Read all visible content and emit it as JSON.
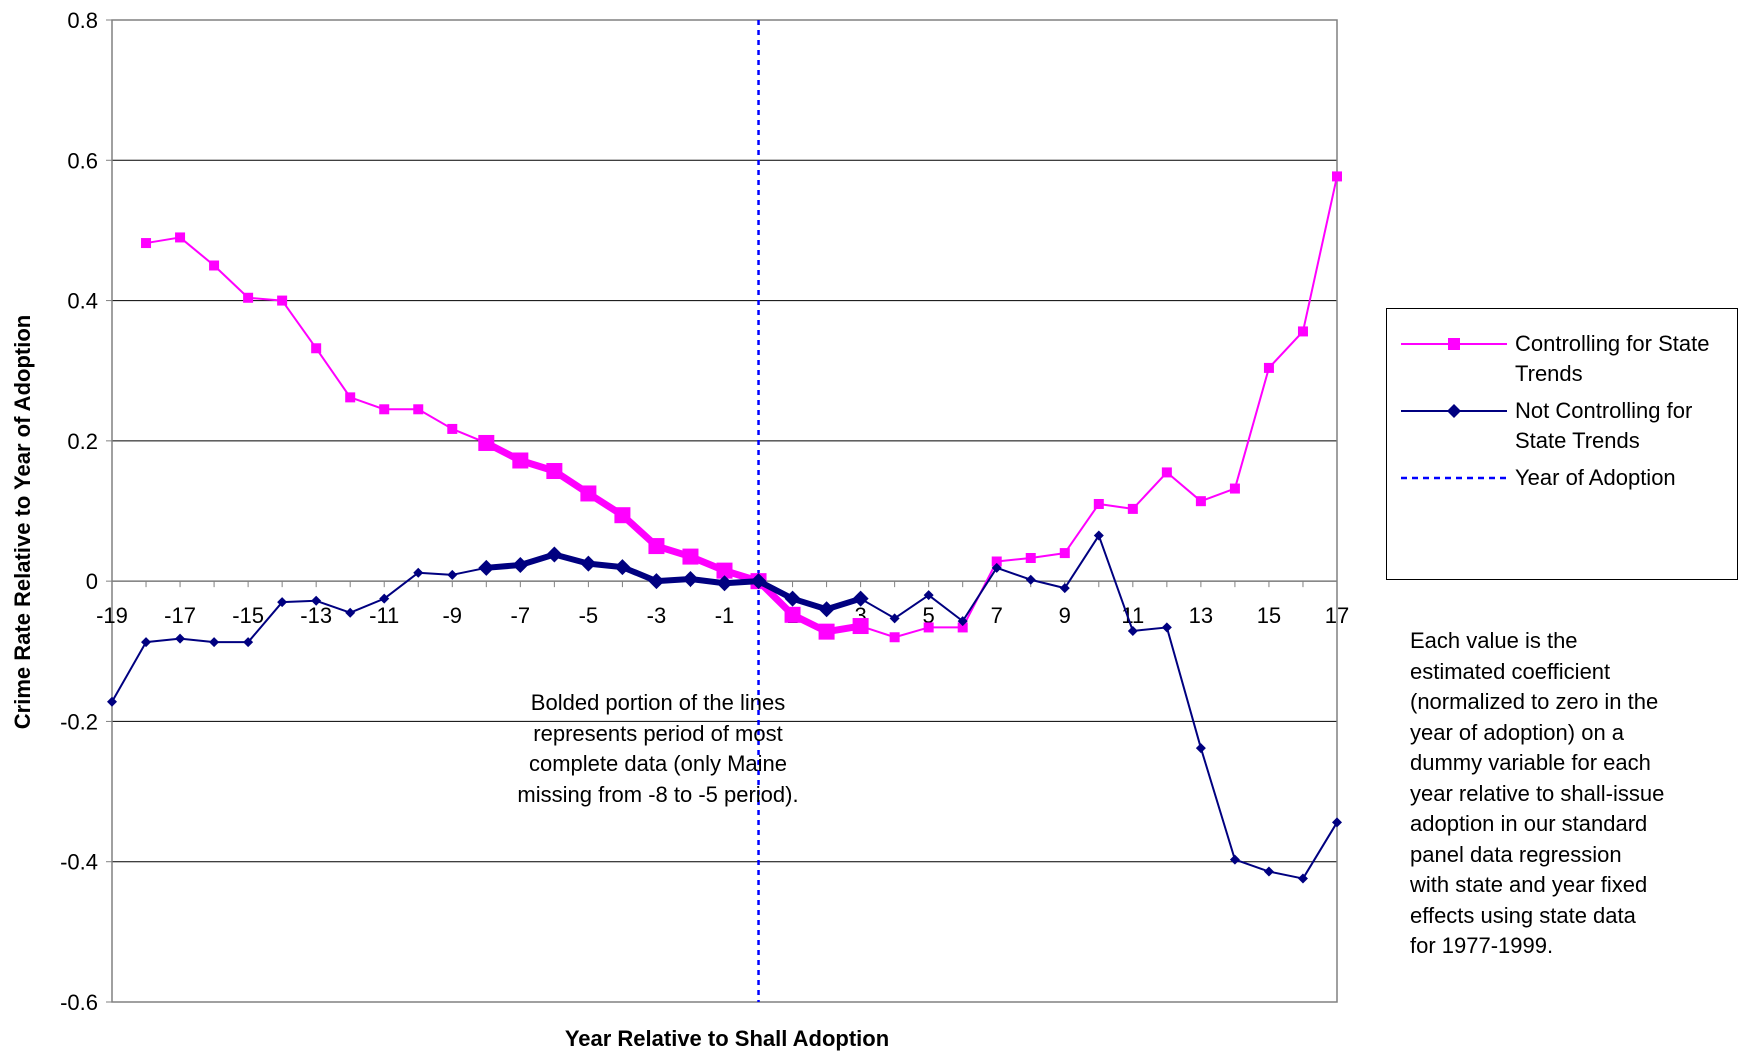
{
  "chart_data": {
    "type": "line",
    "title": "",
    "xlabel": "Year Relative to Shall Adoption",
    "ylabel": "Crime Rate Relative to Year of Adoption",
    "xlim": [
      -19,
      17
    ],
    "ylim": [
      -0.6,
      0.8
    ],
    "grid": "horizontal",
    "legend_position": "right",
    "x_tick_labels": [
      "-19",
      "-17",
      "-15",
      "-13",
      "-11",
      "-9",
      "-7",
      "-5",
      "-3",
      "-1",
      "1",
      "3",
      "5",
      "7",
      "9",
      "11",
      "13",
      "15",
      "17"
    ],
    "y_tick_labels": [
      "0.8",
      "0.6",
      "0.4",
      "0.2",
      "0",
      "-0.2",
      "-0.4",
      "-0.6"
    ],
    "x": [
      -19,
      -18,
      -17,
      -16,
      -15,
      -14,
      -13,
      -12,
      -11,
      -10,
      -9,
      -8,
      -7,
      -6,
      -5,
      -4,
      -3,
      -2,
      -1,
      0,
      1,
      2,
      3,
      4,
      5,
      6,
      7,
      8,
      9,
      10,
      11,
      12,
      13,
      14,
      15,
      16,
      17
    ],
    "bold_range": [
      -8,
      3
    ],
    "series": [
      {
        "name": "Controlling for State Trends",
        "color": "#ff00ff",
        "marker": "square",
        "values": [
          null,
          0.482,
          0.49,
          0.45,
          0.404,
          0.4,
          0.332,
          0.262,
          0.245,
          0.245,
          0.217,
          0.197,
          0.172,
          0.157,
          0.125,
          0.094,
          0.05,
          0.035,
          0.015,
          0.0,
          -0.048,
          -0.072,
          -0.064,
          -0.08,
          -0.066,
          -0.066,
          0.028,
          0.033,
          0.04,
          0.11,
          0.103,
          0.155,
          0.114,
          0.132,
          0.304,
          0.356,
          0.577
        ]
      },
      {
        "name": "Not Controlling for State Trends",
        "color": "#000080",
        "marker": "diamond",
        "values": [
          -0.172,
          -0.087,
          -0.082,
          -0.087,
          -0.087,
          -0.03,
          -0.028,
          -0.045,
          -0.025,
          0.012,
          0.009,
          0.019,
          0.023,
          0.038,
          0.025,
          0.02,
          0.0,
          0.003,
          -0.003,
          0.0,
          -0.025,
          -0.04,
          -0.025,
          -0.053,
          -0.02,
          -0.057,
          0.019,
          0.002,
          -0.01,
          0.065,
          -0.071,
          -0.066,
          -0.238,
          -0.397,
          -0.414,
          -0.424,
          -0.344
        ]
      },
      {
        "name": "Year of Adoption",
        "color": "#0000ff",
        "style": "dotted-vertical",
        "x": 0
      }
    ],
    "annotation": [
      "Bolded portion of the lines",
      "represents period of most",
      "complete data (only Maine",
      "missing from -8 to -5 period)."
    ],
    "note": "Each value is the estimated coefficient (normalized to zero in the year of adoption) on a dummy variable for each year relative to shall-issue adoption in our standard panel data regression with state and year fixed effects using state data for 1977-1999."
  },
  "legend": {
    "items": [
      {
        "label_line1": "Controlling for State",
        "label_line2": "Trends"
      },
      {
        "label_line1": "Not Controlling for",
        "label_line2": "State Trends"
      },
      {
        "label_line1": "Year of Adoption",
        "label_line2": ""
      }
    ]
  },
  "annotation_lines": [
    "Bolded portion of the lines",
    "represents period of most",
    "complete data (only Maine",
    "missing from -8 to -5 period)."
  ],
  "note_lines": [
    "Each value is the",
    "estimated coefficient",
    "(normalized to zero in the",
    "year of adoption) on a",
    "dummy variable for each",
    "year relative to shall-issue",
    "adoption in our standard",
    "panel data regression",
    "with state and year fixed",
    "effects using state data",
    "for 1977-1999."
  ]
}
